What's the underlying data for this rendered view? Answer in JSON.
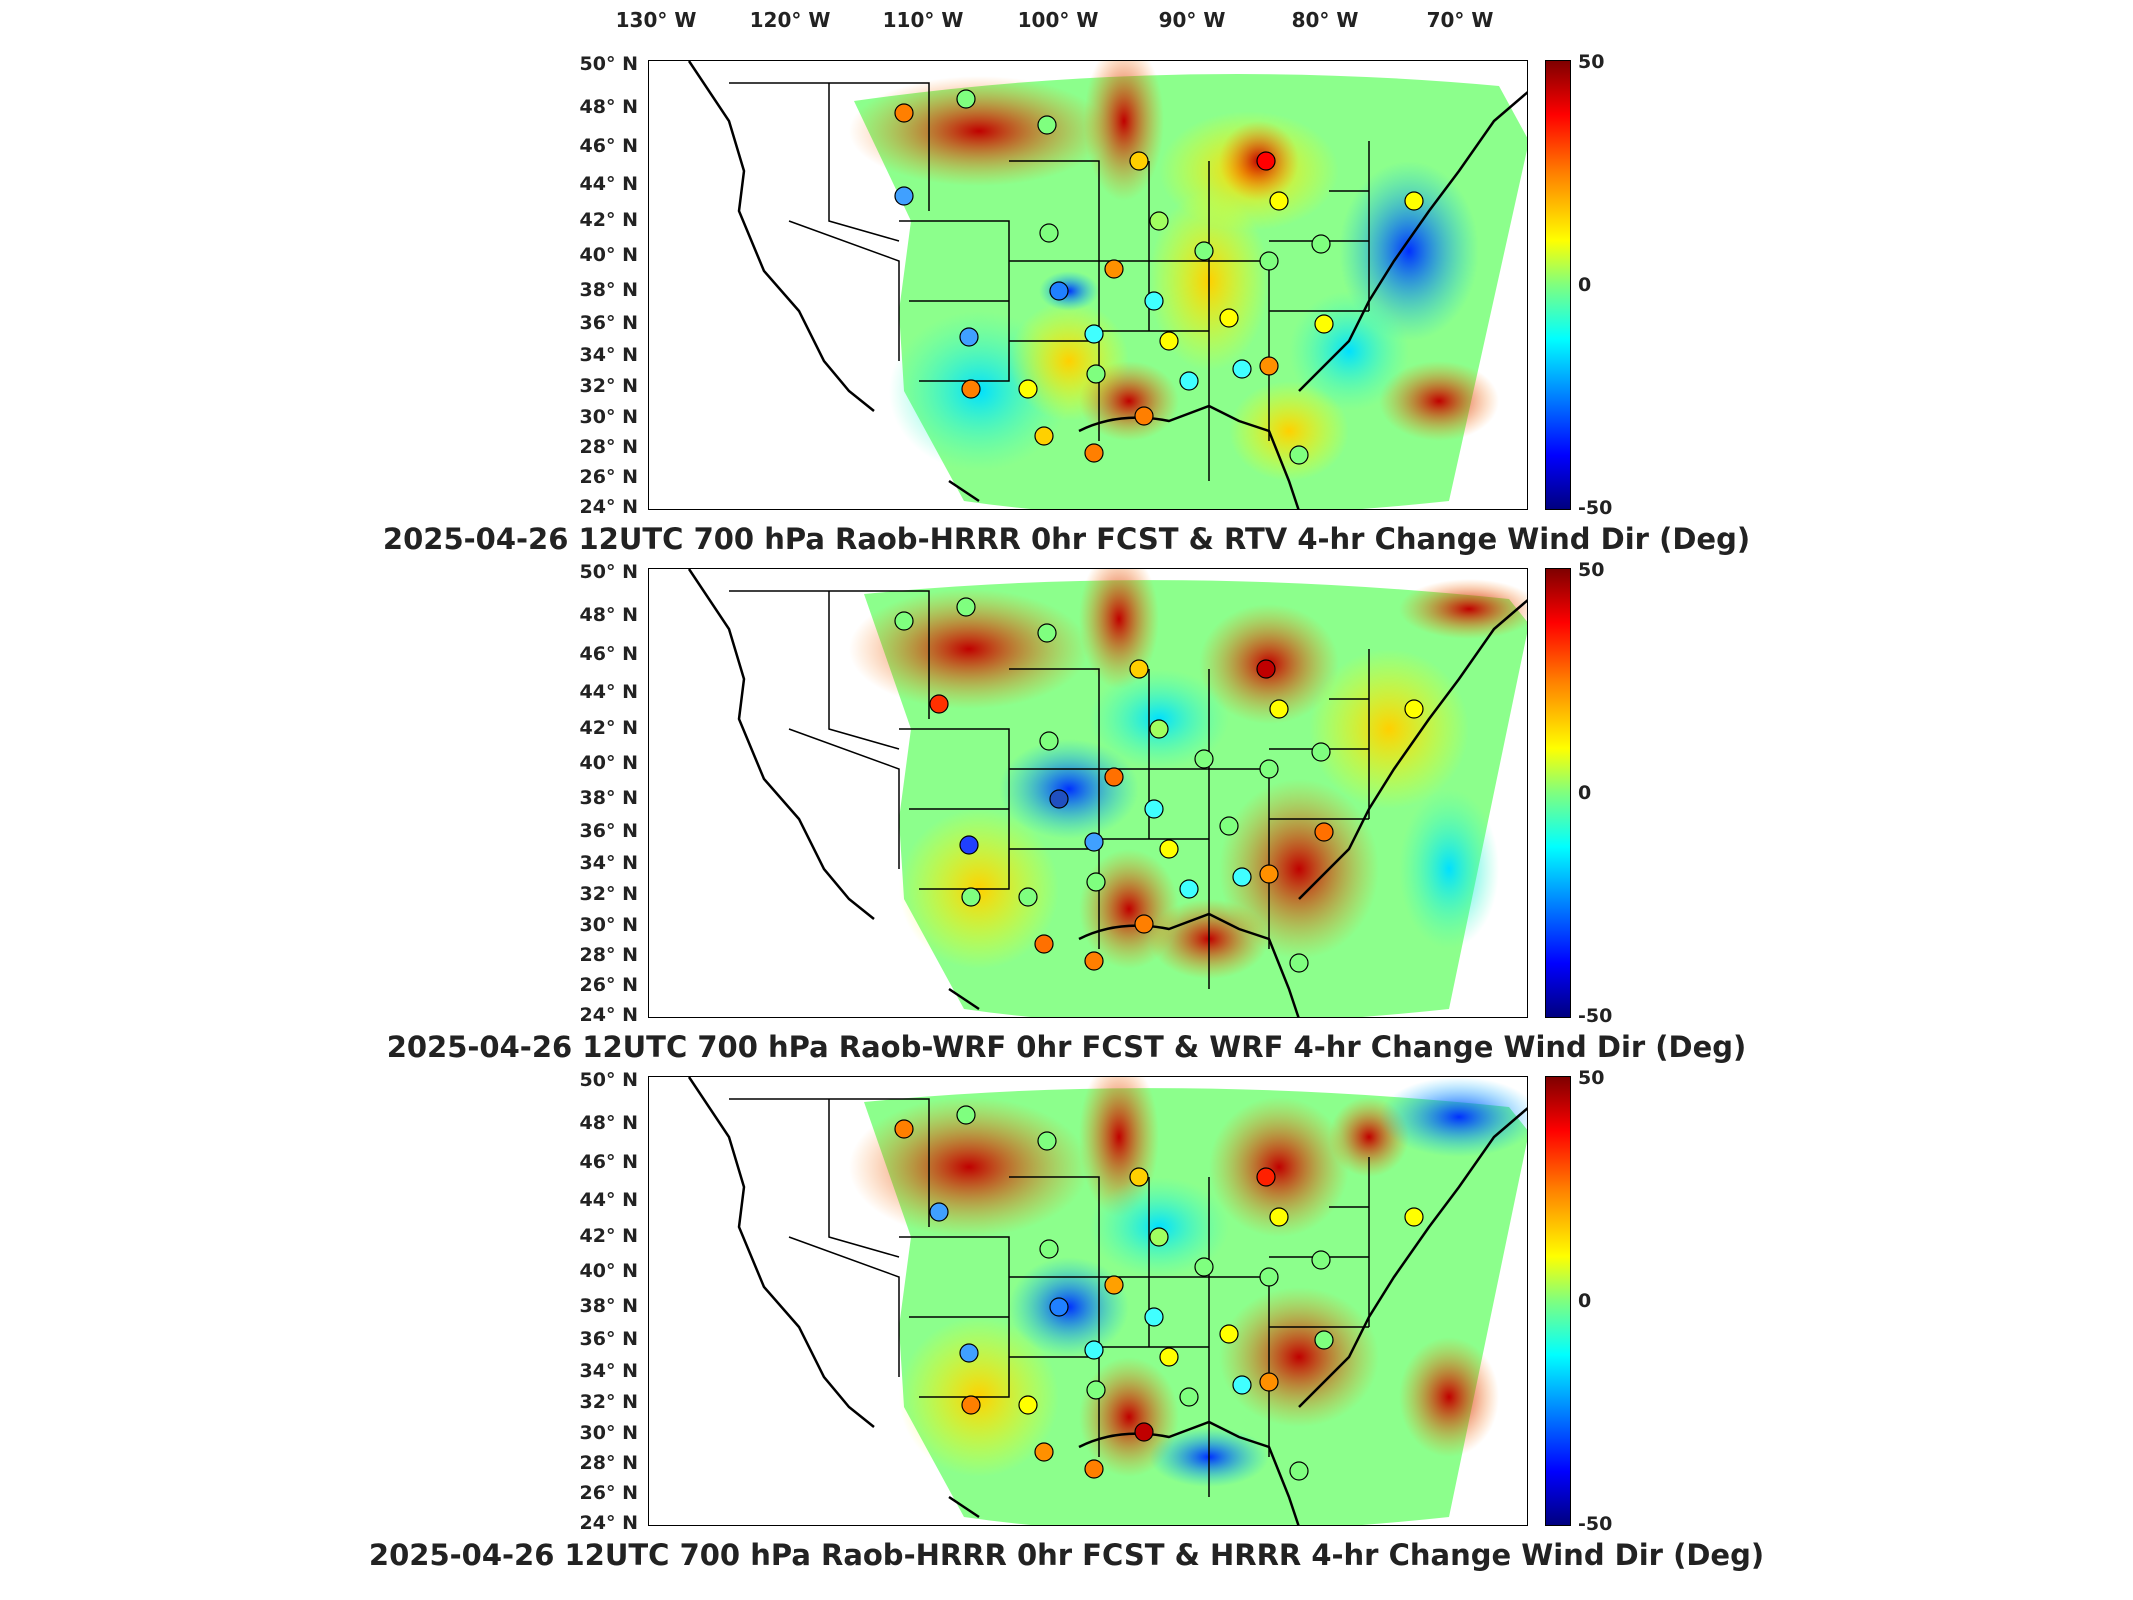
{
  "longitude_labels": [
    "130° W",
    "120° W",
    "110° W",
    "100° W",
    "90° W",
    "80° W",
    "70° W"
  ],
  "latitude_labels": [
    "50° N",
    "48° N",
    "46° N",
    "44° N",
    "42° N",
    "40° N",
    "38° N",
    "36° N",
    "34° N",
    "32° N",
    "30° N",
    "28° N",
    "26° N",
    "24° N"
  ],
  "colorbar": {
    "max_label": "50",
    "mid_label": "0",
    "min_label": "-50",
    "scheme": "jet"
  },
  "panels": [
    {
      "title": "2025-04-26 12UTC 700 hPa Raob-HRRR 0hr FCST & RTV 4-hr Change Wind Dir (Deg)"
    },
    {
      "title": "2025-04-26 12UTC 700 hPa Raob-WRF 0hr FCST & WRF 4-hr Change Wind Dir (Deg)"
    },
    {
      "title": "2025-04-26 12UTC 700 hPa Raob-HRRR 0hr FCST & HRRR 4-hr Change Wind Dir (Deg)"
    }
  ],
  "colors": {
    "warm_max": "#7f0000",
    "neutral": "#7fff7f",
    "cool_min": "#00007f",
    "border": "#000000"
  }
}
